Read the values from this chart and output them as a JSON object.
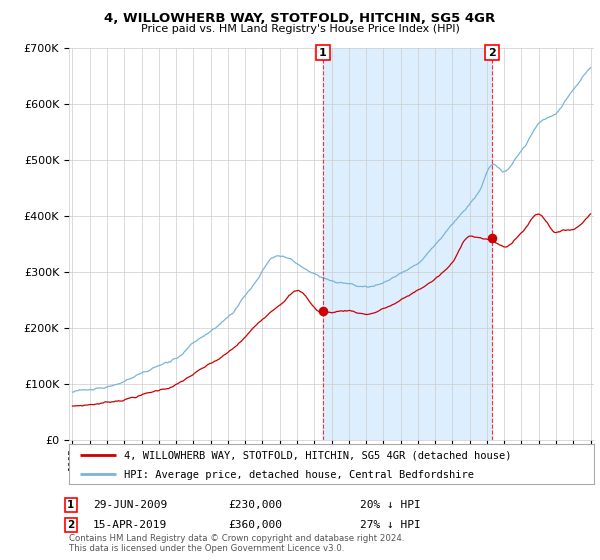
{
  "title": "4, WILLOWHERB WAY, STOTFOLD, HITCHIN, SG5 4GR",
  "subtitle": "Price paid vs. HM Land Registry's House Price Index (HPI)",
  "legend_line1": "4, WILLOWHERB WAY, STOTFOLD, HITCHIN, SG5 4GR (detached house)",
  "legend_line2": "HPI: Average price, detached house, Central Bedfordshire",
  "footnote": "Contains HM Land Registry data © Crown copyright and database right 2024.\nThis data is licensed under the Open Government Licence v3.0.",
  "marker1_label": "1",
  "marker1_date": "29-JUN-2009",
  "marker1_price": "£230,000",
  "marker1_hpi": "20% ↓ HPI",
  "marker1_x": 2009.5,
  "marker1_y": 230000,
  "marker2_label": "2",
  "marker2_date": "15-APR-2019",
  "marker2_price": "£360,000",
  "marker2_hpi": "27% ↓ HPI",
  "marker2_x": 2019.3,
  "marker2_y": 360000,
  "ylim": [
    0,
    700000
  ],
  "xlim_left": 1994.8,
  "xlim_right": 2025.2,
  "hpi_color": "#7ab4d8",
  "price_color": "#cc0000",
  "shade_color": "#ddeeff",
  "grid_color": "#cccccc",
  "bg_color": "#ffffff"
}
